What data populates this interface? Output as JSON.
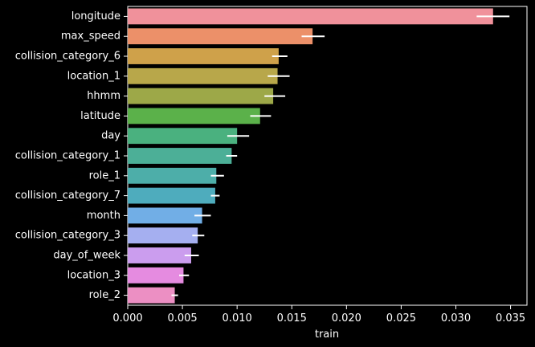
{
  "chart_data": {
    "type": "bar",
    "orientation": "horizontal",
    "title": "",
    "xlabel": "train",
    "ylabel": "",
    "xlim": [
      0,
      0.0365
    ],
    "xticks": [
      0.0,
      0.005,
      0.01,
      0.015,
      0.02,
      0.025,
      0.03,
      0.035
    ],
    "xtick_labels": [
      "0.000",
      "0.005",
      "0.010",
      "0.015",
      "0.020",
      "0.025",
      "0.030",
      "0.035"
    ],
    "grid": false,
    "background": "#000000",
    "categories": [
      "longitude",
      "max_speed",
      "collision_category_6",
      "location_1",
      "hhmm",
      "latitude",
      "day",
      "collision_category_1",
      "role_1",
      "collision_category_7",
      "month",
      "collision_category_3",
      "day_of_week",
      "location_3",
      "role_2"
    ],
    "values": [
      0.0334,
      0.0169,
      0.0138,
      0.0137,
      0.0133,
      0.0121,
      0.01,
      0.0095,
      0.0081,
      0.008,
      0.0068,
      0.0064,
      0.0058,
      0.0051,
      0.0043
    ],
    "errors": [
      [
        0.0319,
        0.0349
      ],
      [
        0.0159,
        0.018
      ],
      [
        0.0132,
        0.0146
      ],
      [
        0.0128,
        0.0148
      ],
      [
        0.0125,
        0.0144
      ],
      [
        0.0112,
        0.0131
      ],
      [
        0.0091,
        0.0111
      ],
      [
        0.009,
        0.01
      ],
      [
        0.0076,
        0.0088
      ],
      [
        0.0076,
        0.0084
      ],
      [
        0.0061,
        0.0076
      ],
      [
        0.0059,
        0.007
      ],
      [
        0.0052,
        0.0065
      ],
      [
        0.0047,
        0.0056
      ],
      [
        0.004,
        0.0046
      ]
    ],
    "colors": [
      "#f0919b",
      "#ec9069",
      "#cfa14a",
      "#b8a74a",
      "#9da848",
      "#5bb14a",
      "#4ab17f",
      "#4caf97",
      "#4daea9",
      "#4eacbd",
      "#71aee6",
      "#a5aff0",
      "#cb9dee",
      "#e58be0",
      "#ec8fc3"
    ]
  }
}
